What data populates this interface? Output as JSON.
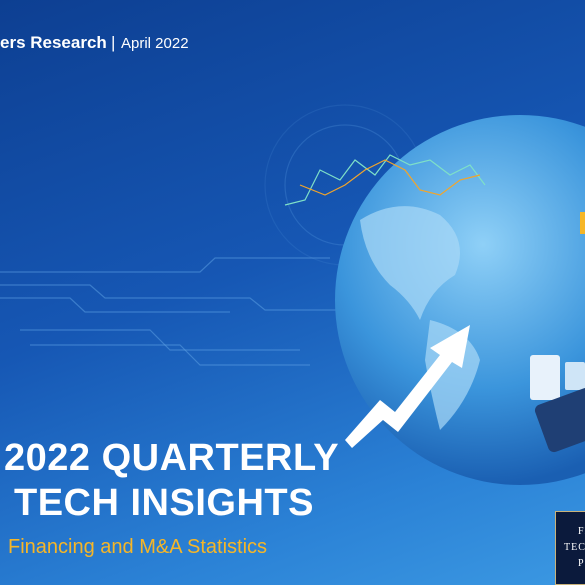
{
  "header": {
    "brand": "ers Research",
    "separator": "|",
    "date": "April 2022"
  },
  "title": {
    "line1": "2022 QUARTERLY",
    "line2": "TECH INSIGHTS"
  },
  "subtitle": "Financing and M&A Statistics",
  "logo": {
    "line1": "FI",
    "line2": "TEC",
    "line3": "P"
  }
}
